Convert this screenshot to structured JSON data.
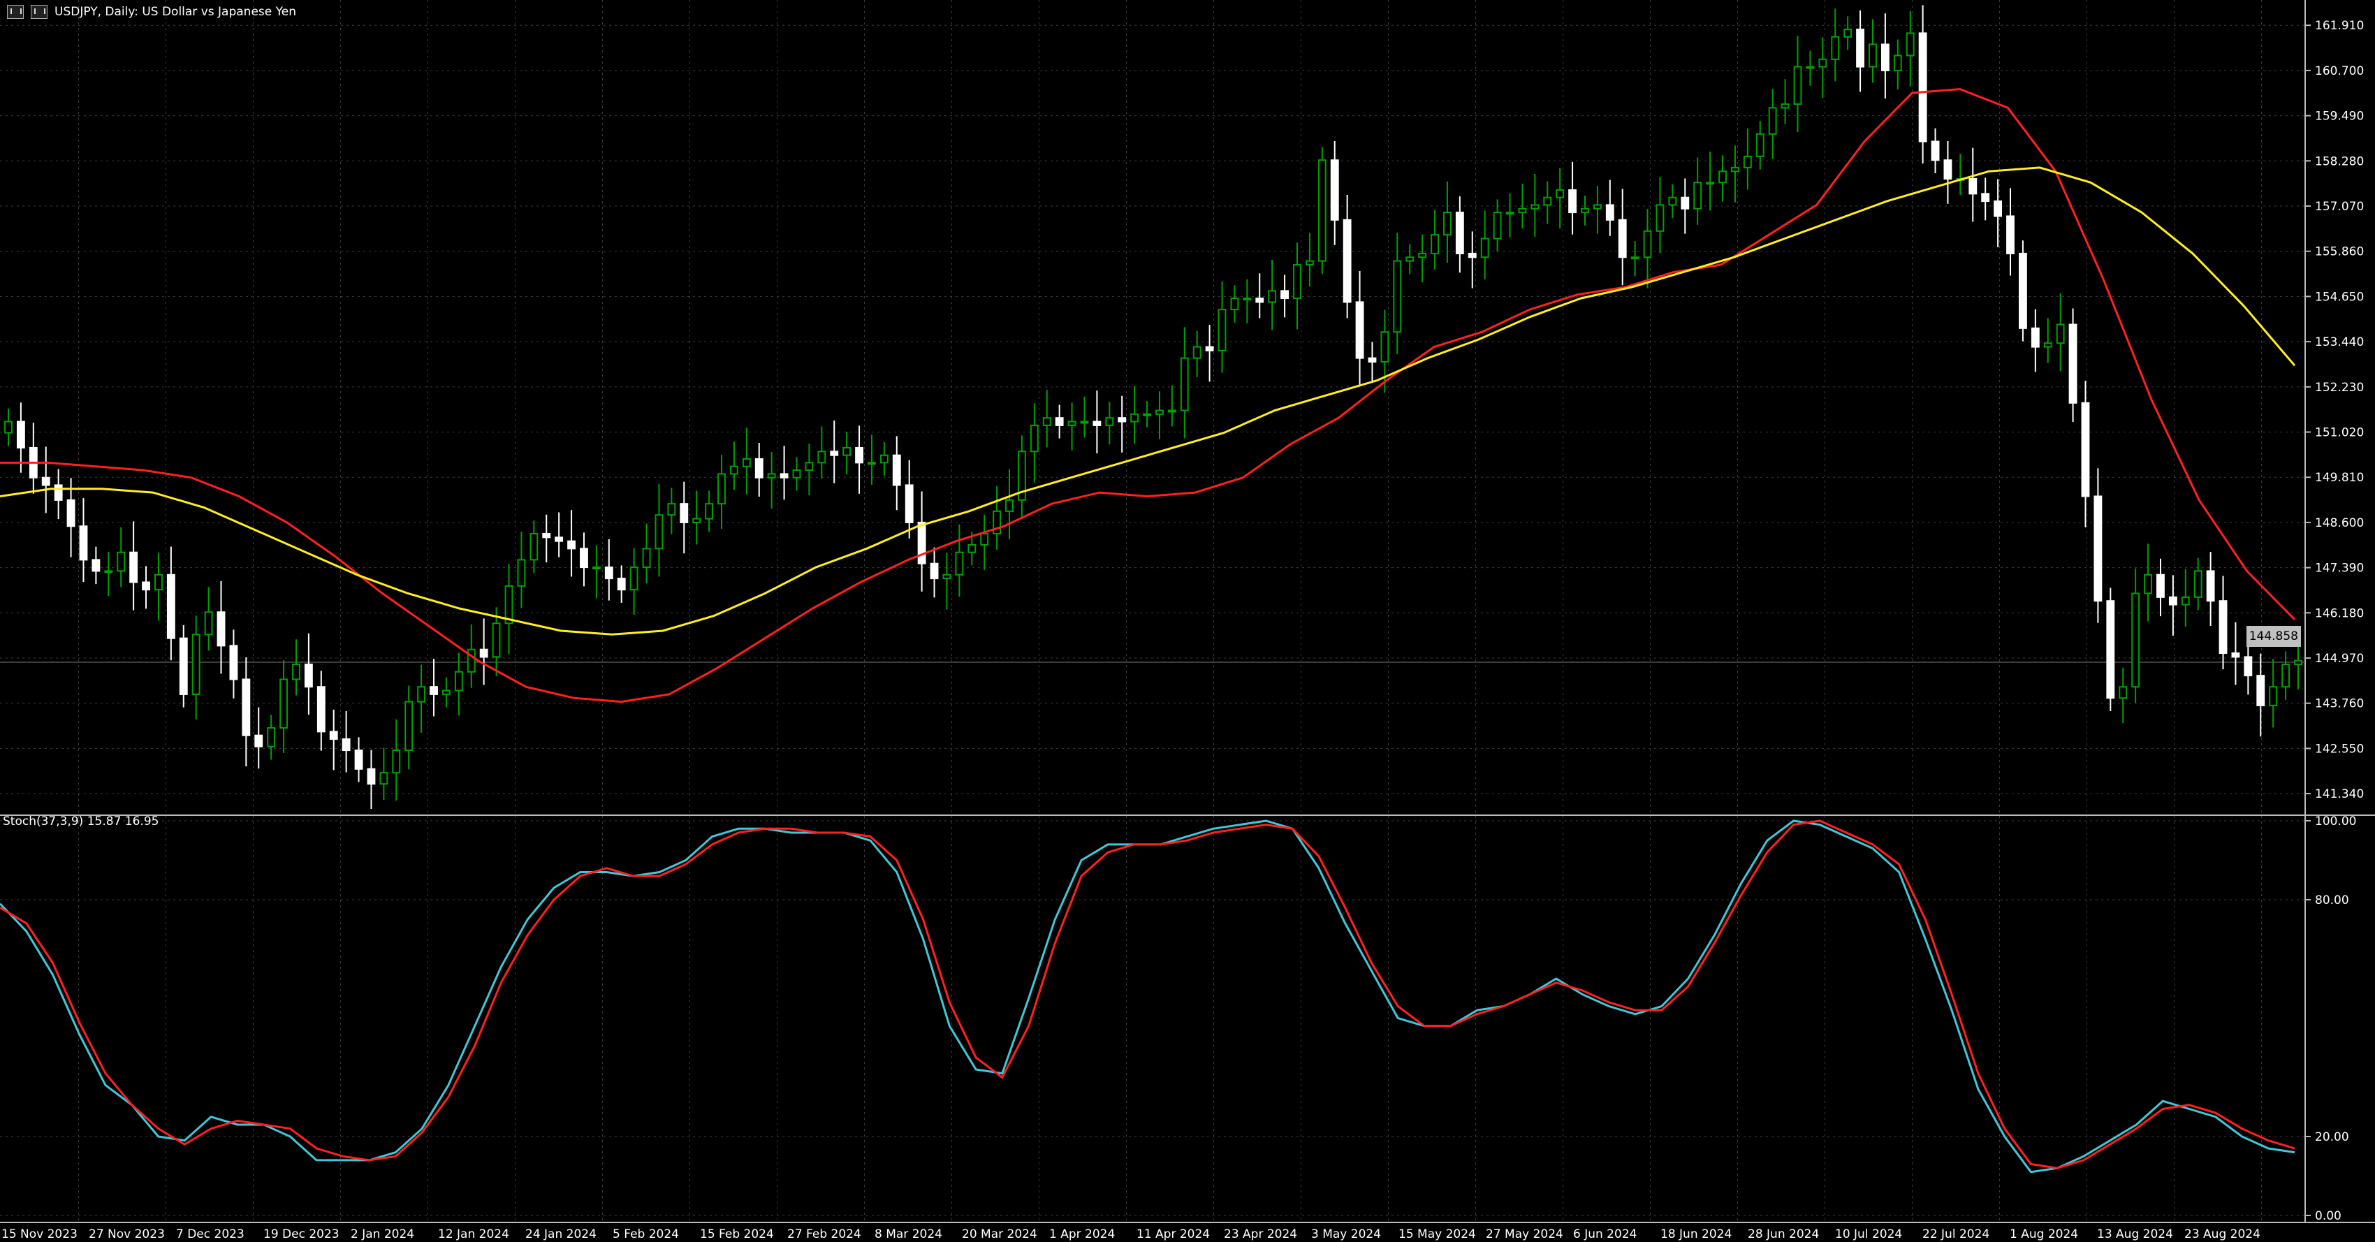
{
  "header": {
    "symbol_line": "USDJPY, Daily:  US Dollar vs Japanese Yen",
    "icon_1": "flag-icon",
    "icon_2": "chart-type-icon"
  },
  "current_price": "144.858",
  "indicator": {
    "label": "Stoch(37,3,9) 15.87 16.95",
    "levels": [
      "100.00",
      "80.00",
      "20.00",
      "0.00"
    ]
  },
  "colors": {
    "background": "#000000",
    "grid": "#3c3c3c",
    "bull_candle": "#00a000",
    "bear_candle": "#ffffff",
    "ma_fast": "#ff2020",
    "ma_slow": "#ffee22",
    "stoch_main": "#40c8d8",
    "stoch_signal": "#ff2020"
  },
  "chart_data": [
    {
      "type": "candlestick",
      "title": "USDJPY, Daily:  US Dollar vs Japanese Yen",
      "y_ticks": [
        "161.910",
        "160.700",
        "159.490",
        "158.280",
        "157.070",
        "155.860",
        "154.650",
        "153.440",
        "152.230",
        "151.020",
        "149.810",
        "148.600",
        "147.390",
        "146.180",
        "144.970",
        "143.760",
        "142.550",
        "141.340"
      ],
      "ylim": [
        140.8,
        162.4
      ],
      "x_ticks": [
        "15 Nov 2023",
        "27 Nov 2023",
        "7 Dec 2023",
        "19 Dec 2023",
        "2 Jan 2024",
        "12 Jan 2024",
        "24 Jan 2024",
        "5 Feb 2024",
        "15 Feb 2024",
        "27 Feb 2024",
        "8 Mar 2024",
        "20 Mar 2024",
        "1 Apr 2024",
        "11 Apr 2024",
        "23 Apr 2024",
        "3 May 2024",
        "15 May 2024",
        "27 May 2024",
        "6 Jun 2024",
        "18 Jun 2024",
        "28 Jun 2024",
        "10 Jul 2024",
        "22 Jul 2024",
        "1 Aug 2024",
        "13 Aug 2024",
        "23 Aug 2024"
      ],
      "close_series": [
        151.3,
        150.6,
        149.8,
        149.6,
        149.2,
        148.5,
        147.6,
        147.3,
        147.3,
        147.8,
        147.0,
        146.8,
        147.2,
        145.5,
        144.0,
        145.6,
        146.2,
        145.3,
        144.4,
        142.9,
        142.6,
        143.1,
        144.4,
        144.8,
        144.2,
        143.0,
        142.8,
        142.5,
        142.0,
        141.6,
        141.9,
        142.5,
        143.8,
        144.2,
        144.0,
        144.1,
        144.6,
        145.2,
        145.0,
        145.9,
        146.9,
        147.6,
        148.3,
        148.2,
        148.1,
        147.9,
        147.4,
        147.4,
        147.1,
        146.8,
        147.4,
        147.9,
        148.8,
        149.1,
        148.6,
        148.7,
        149.1,
        149.9,
        150.1,
        150.3,
        149.8,
        149.9,
        149.8,
        150.0,
        150.2,
        150.5,
        150.4,
        150.6,
        150.2,
        150.2,
        150.4,
        149.6,
        148.6,
        147.5,
        147.1,
        147.2,
        147.8,
        148.0,
        148.3,
        148.9,
        149.2,
        150.5,
        151.2,
        151.4,
        151.2,
        151.3,
        151.3,
        151.2,
        151.4,
        151.3,
        151.5,
        151.5,
        151.6,
        151.6,
        153.0,
        153.3,
        153.2,
        154.3,
        154.6,
        154.6,
        154.5,
        154.8,
        154.6,
        155.5,
        155.6,
        158.3,
        156.7,
        154.5,
        153.0,
        152.9,
        153.7,
        155.6,
        155.7,
        155.8,
        156.3,
        156.9,
        155.8,
        155.7,
        156.2,
        156.9,
        156.9,
        157.0,
        157.1,
        157.3,
        157.5,
        156.9,
        157.0,
        157.1,
        156.7,
        155.7,
        155.7,
        156.4,
        157.1,
        157.3,
        157.0,
        157.7,
        157.7,
        158.0,
        158.1,
        158.4,
        159.0,
        159.7,
        159.8,
        160.8,
        160.8,
        161.0,
        161.6,
        161.8,
        160.8,
        161.4,
        160.7,
        161.1,
        161.7,
        158.8,
        158.3,
        157.8,
        157.8,
        157.4,
        157.2,
        156.8,
        155.8,
        153.8,
        153.3,
        153.4,
        153.9,
        151.8,
        149.3,
        146.5,
        143.9,
        144.2,
        146.7,
        147.2,
        146.6,
        146.4,
        146.6,
        147.3,
        146.5,
        145.1,
        145.0,
        144.5,
        143.7,
        144.2,
        144.8,
        144.9
      ],
      "moving_averages": [
        {
          "color": "#ff2020",
          "values": [
            150.2,
            150.2,
            150.1,
            150.0,
            149.8,
            149.3,
            148.6,
            147.7,
            146.7,
            145.8,
            144.9,
            144.2,
            143.9,
            143.8,
            144.0,
            144.7,
            145.5,
            146.3,
            147.0,
            147.6,
            148.1,
            148.5,
            149.1,
            149.4,
            149.3,
            149.4,
            149.8,
            150.7,
            151.4,
            152.4,
            153.3,
            153.7,
            154.3,
            154.7,
            154.9,
            155.3,
            155.5,
            156.3,
            157.1,
            158.8,
            160.1,
            160.2,
            159.7,
            158.0,
            155.1,
            151.9,
            149.2,
            147.3,
            146.0
          ]
        },
        {
          "color": "#ffee22",
          "values": [
            149.3,
            149.5,
            149.5,
            149.4,
            149.0,
            148.4,
            147.8,
            147.2,
            146.7,
            146.3,
            146.0,
            145.7,
            145.6,
            145.7,
            146.1,
            146.7,
            147.4,
            147.9,
            148.5,
            148.9,
            149.4,
            149.8,
            150.2,
            150.6,
            151.0,
            151.6,
            152.0,
            152.4,
            153.0,
            153.5,
            154.1,
            154.6,
            154.9,
            155.3,
            155.7,
            156.2,
            156.7,
            157.2,
            157.6,
            158.0,
            158.1,
            157.7,
            156.9,
            155.8,
            154.4,
            152.8
          ]
        }
      ]
    },
    {
      "type": "line",
      "title": "Stoch(37,3,9) 15.87 16.95",
      "ylim": [
        0,
        100
      ],
      "y_ticks": [
        "100.00",
        "80.00",
        "20.00",
        "0.00"
      ],
      "series": [
        {
          "color": "#40c8d8",
          "values": [
            79,
            72,
            61,
            46,
            33,
            28,
            20,
            19,
            25,
            23,
            23,
            20,
            14,
            14,
            14,
            16,
            22,
            33,
            48,
            63,
            75,
            83,
            87,
            87,
            86,
            87,
            90,
            96,
            98,
            98,
            97,
            97,
            97,
            95,
            87,
            70,
            48,
            37,
            36,
            55,
            75,
            90,
            94,
            94,
            94,
            96,
            98,
            99,
            100,
            98,
            88,
            74,
            62,
            50,
            48,
            48,
            52,
            53,
            56,
            60,
            56,
            53,
            51,
            53,
            60,
            71,
            84,
            95,
            100,
            99,
            96,
            93,
            87,
            70,
            52,
            32,
            20,
            11,
            12,
            15,
            19,
            23,
            29,
            27,
            25,
            20,
            17,
            16
          ]
        },
        {
          "color": "#ff2020",
          "values": [
            78,
            74,
            64,
            49,
            36,
            28,
            22,
            18,
            22,
            24,
            23,
            22,
            17,
            15,
            14,
            15,
            21,
            30,
            43,
            59,
            71,
            80,
            86,
            88,
            86,
            86,
            89,
            94,
            97,
            98,
            98,
            97,
            97,
            96,
            90,
            75,
            54,
            40,
            35,
            48,
            69,
            86,
            92,
            94,
            94,
            95,
            97,
            98,
            99,
            98,
            91,
            78,
            64,
            53,
            48,
            48,
            51,
            53,
            56,
            59,
            57,
            54,
            52,
            52,
            58,
            69,
            81,
            92,
            99,
            100,
            97,
            94,
            89,
            75,
            56,
            36,
            22,
            13,
            12,
            14,
            18,
            22,
            27,
            28,
            26,
            22,
            19,
            17
          ]
        }
      ]
    }
  ]
}
